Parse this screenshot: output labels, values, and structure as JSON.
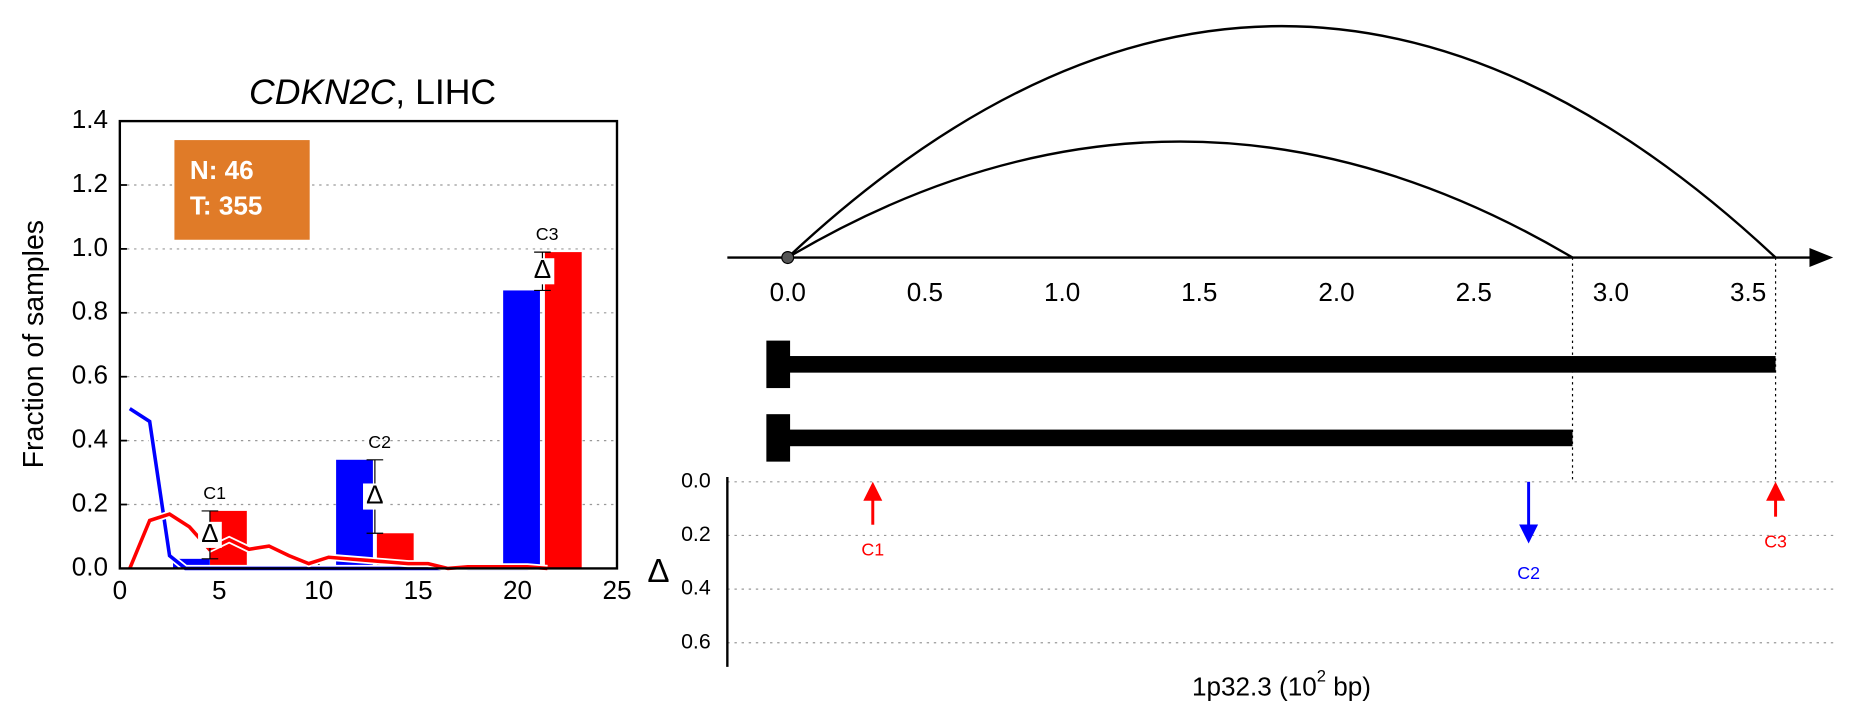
{
  "chart_data": [
    {
      "type": "bar",
      "title_parts": [
        "CDKN2C",
        ", LIHC"
      ],
      "ylabel": "Fraction of samples",
      "xlim": [
        0,
        25
      ],
      "ylim": [
        0,
        1.4
      ],
      "xticks": [
        0,
        5,
        10,
        15,
        20,
        25
      ],
      "yticks": [
        {
          "value": 0,
          "label": "0.0"
        },
        0.2,
        0.4,
        0.6,
        0.8,
        {
          "value": 1,
          "label": "1.0"
        },
        1.2,
        1.4
      ],
      "grid": true,
      "counts": [
        "N: 46",
        "T: 355"
      ],
      "counts_color": "#e07b28",
      "groups": [
        "C1",
        "C2",
        "C3"
      ],
      "delta_symbol": "Δ",
      "series": [
        {
          "color": "#0000ff",
          "x": [
            3.6,
            11.8,
            20.2
          ],
          "values": [
            0.03,
            0.34,
            0.87
          ]
        },
        {
          "color": "#ff0000",
          "x": [
            5.46,
            13.85,
            22.3
          ],
          "values": [
            0.18,
            0.11,
            0.99
          ]
        }
      ],
      "lines": [
        {
          "color": "#0000ff",
          "x": [
            0.5,
            1.5,
            2.5,
            3.3,
            21
          ],
          "values": [
            0.5,
            0.46,
            0.04,
            0,
            0
          ]
        },
        {
          "color": "#ff0000",
          "x": [
            0.5,
            1.5,
            2.5,
            3.5,
            4.5,
            5.5,
            6.5,
            7.5,
            8.5,
            9.5,
            10.5,
            11.5,
            12.5,
            13.5,
            14.5,
            15.5,
            16.5,
            17.5,
            18.5,
            19.5,
            20.5,
            21.5
          ],
          "values": [
            0,
            0.15,
            0.17,
            0.13,
            0.06,
            0.09,
            0.06,
            0.07,
            0.04,
            0.015,
            0.035,
            0.03,
            0.025,
            0.02,
            0.015,
            0.015,
            0,
            0.005,
            0.005,
            0.005,
            0.005,
            0
          ]
        }
      ]
    },
    {
      "type": "arc",
      "xlim": [
        -0.22,
        3.81
      ],
      "xticks": [
        {
          "value": 0,
          "label": "0.0"
        },
        0.5,
        {
          "value": 1,
          "label": "1.0"
        },
        1.5,
        {
          "value": 2,
          "label": "2.0"
        },
        2.5,
        {
          "value": 3,
          "label": "3.0"
        },
        3.5
      ],
      "ends": [
        3.6,
        2.86
      ],
      "ylabel": "Δ",
      "ylim": [
        0,
        0.69
      ],
      "yticks": [
        {
          "value": 0,
          "label": "0.0"
        },
        0.2,
        0.4,
        0.6
      ],
      "grid": true,
      "xlabel_parts": [
        "1p32.3 (10",
        "2",
        " bp)"
      ],
      "arrows": {
        "labels": [
          "C1",
          "C2",
          "C3"
        ],
        "x": [
          0.31,
          2.7,
          3.6
        ],
        "values": [
          0.16,
          0.23,
          0.13
        ],
        "colors": [
          "#ff0000",
          "#0000ff",
          "#ff0000"
        ],
        "direction": [
          "up",
          "down",
          "up"
        ]
      }
    }
  ]
}
